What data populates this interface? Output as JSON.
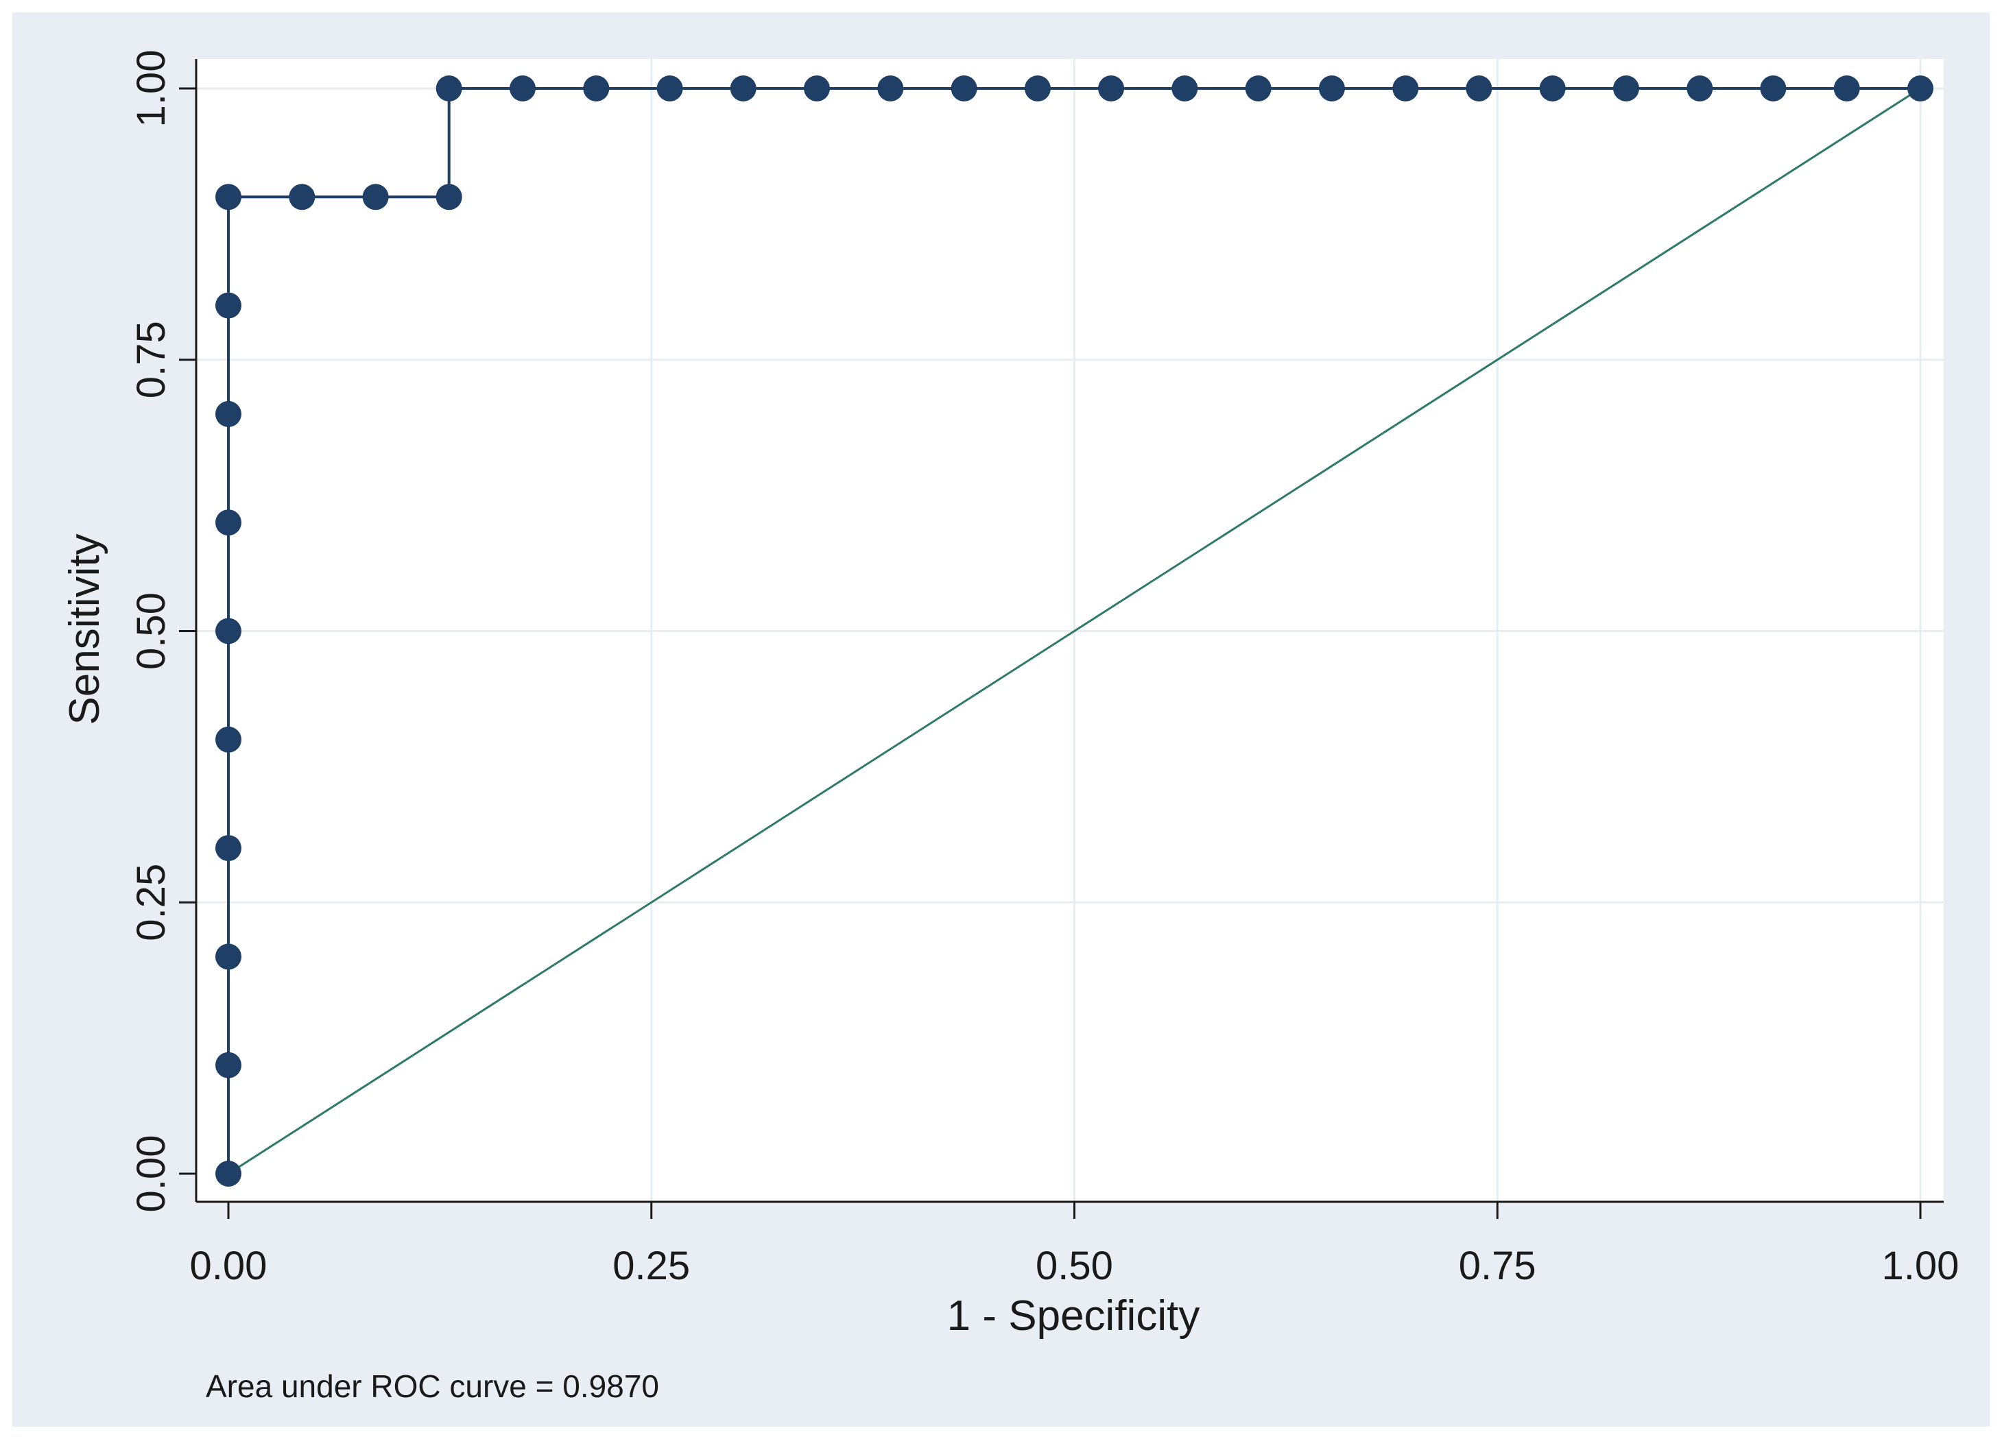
{
  "chart_data": {
    "type": "line",
    "xlabel": "1 - Specificity",
    "ylabel": "Sensitivity",
    "xlim": [
      0,
      1
    ],
    "ylim": [
      0,
      1
    ],
    "x_ticks": [
      "0.00",
      "0.25",
      "0.50",
      "0.75",
      "1.00"
    ],
    "y_ticks": [
      "0.00",
      "0.25",
      "0.50",
      "0.75",
      "1.00"
    ],
    "grid": true,
    "note": "Area under ROC curve = 0.9870",
    "series": [
      {
        "style": "step-with-markers",
        "color": "#1f3f66",
        "x": [
          0,
          0,
          0,
          0,
          0,
          0,
          0,
          0,
          0,
          0,
          0.0435,
          0.087,
          0.1304,
          0.1304,
          0.1739,
          0.2174,
          0.2609,
          0.3043,
          0.3478,
          0.3913,
          0.4348,
          0.4783,
          0.5217,
          0.5652,
          0.6087,
          0.6522,
          0.6957,
          0.7391,
          0.7826,
          0.8261,
          0.8696,
          0.913,
          0.9565,
          1.0
        ],
        "y": [
          0,
          0.1,
          0.2,
          0.3,
          0.4,
          0.5,
          0.6,
          0.7,
          0.8,
          0.9,
          0.9,
          0.9,
          0.9,
          1.0,
          1.0,
          1.0,
          1.0,
          1.0,
          1.0,
          1.0,
          1.0,
          1.0,
          1.0,
          1.0,
          1.0,
          1.0,
          1.0,
          1.0,
          1.0,
          1.0,
          1.0,
          1.0,
          1.0,
          1.0
        ]
      },
      {
        "style": "reference-line",
        "color": "#2f7a68",
        "x": [
          0,
          1
        ],
        "y": [
          0,
          1
        ]
      }
    ]
  }
}
